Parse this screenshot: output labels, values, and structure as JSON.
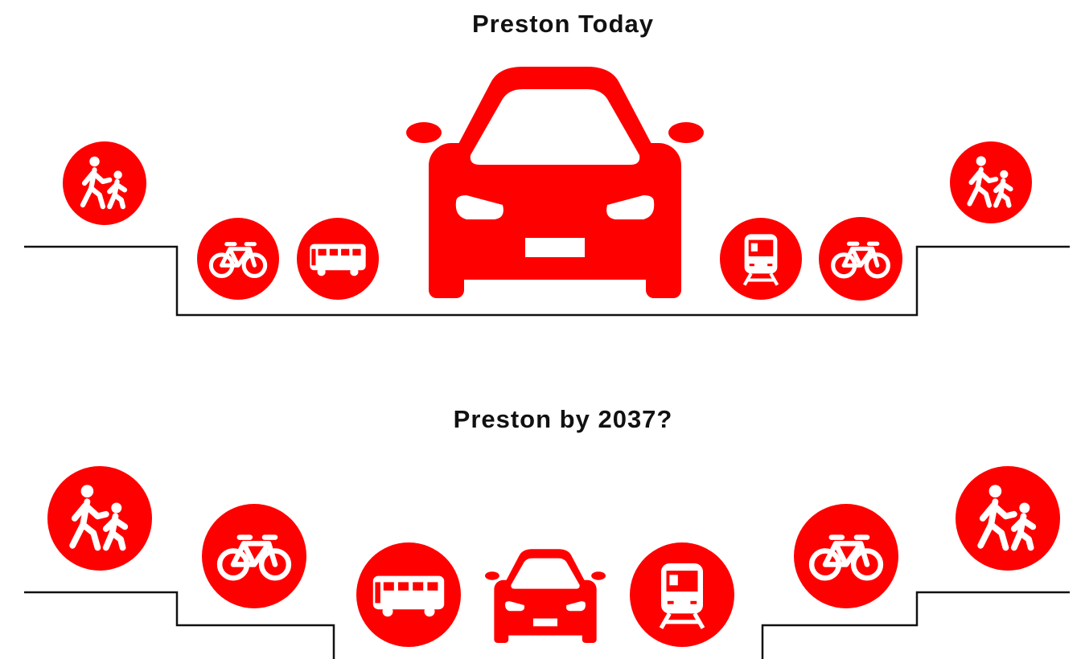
{
  "top": {
    "title": "Preston Today"
  },
  "bottom": {
    "title": "Preston by 2037?"
  }
}
